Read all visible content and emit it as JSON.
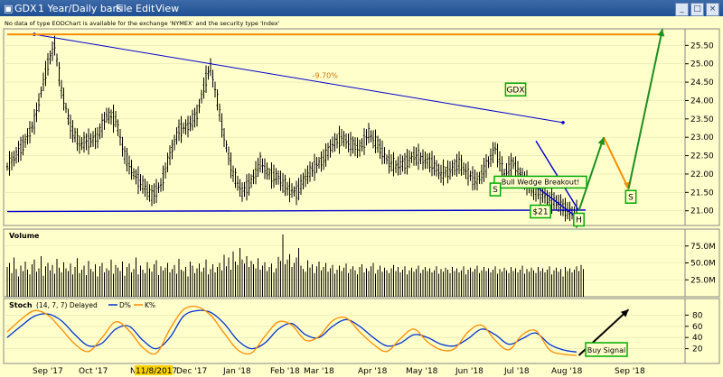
{
  "window": {
    "symbol": "GDX",
    "timeframe": "1 Year/Daily bars",
    "menu": [
      "File",
      "Edit",
      "View"
    ]
  },
  "notice": "No data of type EODChart is available for the exchange 'NYMEX' and the security type 'Index'",
  "colors": {
    "background": "#ffffcc",
    "bars": "#000000",
    "trendline": "#0000cc",
    "projection_orange": "#ff8c00",
    "projection_green": "#1f8f1f",
    "stoch_d": "#0033cc",
    "stoch_k": "#ff8c00",
    "label_border": "#00aa00"
  },
  "chart_data": [
    {
      "type": "bar",
      "panel": "price",
      "title": "",
      "x_labels": [
        "Sep '17",
        "Oct '17",
        "Nov",
        "11/8/2017",
        "Dec '17",
        "Jan '18",
        "Feb '18",
        "Mar '18",
        "Apr '18",
        "May '18",
        "Jun '18",
        "Jul '18",
        "Aug '18",
        "Sep '18"
      ],
      "ylim": [
        20.6,
        25.95
      ],
      "y_ticks": [
        21.0,
        21.5,
        22.0,
        22.5,
        23.0,
        23.5,
        24.0,
        24.5,
        25.0,
        25.5
      ],
      "y_tick_labels": [
        "21.00",
        "21.50",
        "22.00",
        "22.50",
        "23.00",
        "23.50",
        "24.00",
        "24.50",
        "25.00",
        "25.50"
      ],
      "close_path": {
        "t": [
          0,
          4,
          8,
          12,
          16,
          18,
          21,
          24,
          28,
          32,
          36,
          40,
          44,
          48,
          52,
          56,
          60,
          64,
          68,
          72,
          76,
          80,
          84,
          88,
          90,
          93,
          96,
          100,
          104,
          108,
          112,
          116,
          120,
          124,
          128,
          132,
          136,
          140,
          144,
          148,
          152,
          156,
          160,
          164,
          168,
          172,
          176,
          180,
          184,
          188,
          192,
          196,
          200,
          204,
          208,
          212,
          216,
          220,
          224,
          228,
          232,
          236,
          240,
          244,
          248,
          252
        ],
        "close": [
          22.2,
          22.5,
          22.9,
          23.4,
          24.5,
          25.0,
          25.5,
          24.3,
          23.3,
          22.8,
          22.9,
          23.0,
          23.6,
          23.5,
          22.5,
          22.0,
          21.7,
          21.4,
          21.7,
          22.5,
          23.2,
          23.3,
          23.6,
          24.6,
          24.9,
          24.0,
          23.0,
          22.0,
          21.5,
          21.8,
          22.3,
          22.0,
          21.9,
          21.6,
          21.5,
          21.9,
          22.2,
          22.4,
          22.8,
          23.0,
          22.8,
          22.7,
          23.1,
          22.8,
          22.4,
          22.2,
          22.3,
          22.5,
          22.4,
          22.3,
          22.0,
          22.1,
          22.3,
          22.0,
          21.8,
          22.2,
          22.7,
          22.0,
          22.3,
          21.9,
          21.6,
          21.5,
          21.3,
          21.2,
          21.0,
          20.9
        ]
      },
      "trendlines": [
        {
          "name": "",
          "from": {
            "t": 12,
            "y": 25.8
          },
          "to": {
            "t": 246,
            "y": 23.4
          },
          "label": "-9.70%"
        },
        {
          "name": "",
          "from": {
            "t": 0,
            "y": 20.98
          },
          "to": {
            "t": 256,
            "y": 21.02
          }
        },
        {
          "name": "",
          "from": {
            "t": 234,
            "y": 22.9
          },
          "to": {
            "t": 253,
            "y": 21.0
          }
        },
        {
          "name": "",
          "from": {
            "t": 229,
            "y": 21.9
          },
          "to": {
            "t": 253,
            "y": 20.78
          }
        }
      ],
      "projection_orange": [
        {
          "t": 0,
          "y": 25.8
        },
        {
          "t": 290,
          "y": 25.8
        },
        {
          "t": 264,
          "y": 23.0
        },
        {
          "t": 275,
          "y": 21.6
        }
      ],
      "projection_green": [
        {
          "t": 253,
          "y": 21.0
        },
        {
          "t": 264,
          "y": 23.0
        },
        {
          "t": 275,
          "y": 21.6
        },
        {
          "t": 290,
          "y": 25.95
        }
      ],
      "annotations": [
        {
          "text": "GDX",
          "t": 225,
          "y": 24.3,
          "boxed": true
        },
        {
          "text": "Bull Wedge Breakout!",
          "t": 236,
          "y": 21.78,
          "boxed": true
        },
        {
          "text": "S",
          "t": 216,
          "y": 21.58,
          "boxed": true
        },
        {
          "text": "S",
          "t": 276,
          "y": 21.38,
          "boxed": true
        },
        {
          "text": "$21",
          "t": 236,
          "y": 20.98,
          "boxed": true
        },
        {
          "text": "H",
          "t": 253,
          "y": 20.76,
          "boxed": true
        }
      ]
    },
    {
      "type": "bar",
      "panel": "volume",
      "title": "Volume",
      "y_tick_labels": [
        "75.0M",
        "50.0M",
        "25.0M"
      ],
      "y_ticks": [
        75,
        50,
        25
      ],
      "ylim": [
        0,
        100
      ],
      "values": [
        44,
        50,
        35,
        58,
        41,
        30,
        46,
        38,
        52,
        40,
        33,
        48,
        55,
        37,
        42,
        60,
        31,
        45,
        50,
        39,
        47,
        34,
        56,
        43,
        36,
        51,
        42,
        38,
        49,
        33,
        44,
        57,
        35,
        40,
        46,
        32,
        53,
        41,
        37,
        48,
        30,
        45,
        50,
        36,
        42,
        39,
        55,
        34,
        47,
        43,
        38,
        52,
        31,
        44,
        49,
        36,
        41,
        58,
        33,
        46,
        40,
        35,
        51,
        42,
        37,
        48,
        54,
        32,
        45,
        39,
        43,
        50,
        36,
        41,
        47,
        34,
        56,
        40,
        38,
        44,
        30,
        52,
        46,
        35,
        42,
        49,
        37,
        43,
        55,
        33,
        41,
        48,
        36,
        44,
        50,
        39,
        62,
        45,
        58,
        40,
        67,
        52,
        47,
        72,
        55,
        49,
        60,
        44,
        53,
        48,
        42,
        57,
        40,
        46,
        51,
        38,
        44,
        49,
        36,
        42,
        59,
        53,
        92,
        48,
        55,
        63,
        44,
        50,
        58,
        72,
        46,
        41,
        37,
        54,
        43,
        48,
        35,
        45,
        52,
        39,
        44,
        50,
        37,
        42,
        47,
        34,
        40,
        46,
        38,
        43,
        49,
        35,
        41,
        45,
        39,
        33,
        44,
        48,
        36,
        42,
        38,
        45,
        50,
        34,
        40,
        46,
        37,
        43,
        39,
        35,
        42,
        47,
        38,
        44,
        36,
        40,
        45,
        33,
        39,
        43,
        37,
        41,
        46,
        35,
        40,
        44,
        38,
        42,
        36,
        39,
        45,
        34,
        41,
        37,
        43,
        40,
        35,
        44,
        38,
        42,
        36,
        39,
        45,
        33,
        40,
        43,
        37,
        41,
        46,
        35,
        39,
        44,
        38,
        42,
        36,
        40,
        45,
        34,
        41,
        37,
        43,
        39,
        35,
        44,
        38,
        42,
        36,
        40,
        46,
        34,
        41,
        37,
        43,
        39,
        35,
        44,
        38,
        42,
        36,
        40,
        45,
        33,
        39,
        43,
        37,
        41,
        30,
        44,
        38,
        42,
        36,
        40,
        45,
        38,
        47,
        41
      ]
    },
    {
      "type": "line",
      "panel": "stochastic",
      "title": "Stoch",
      "params": "(14, 7, 7) Delayed",
      "ylim": [
        0,
        100
      ],
      "y_ticks": [
        80,
        60,
        40,
        20
      ],
      "y_tick_labels": [
        "80",
        "60",
        "40",
        "20"
      ],
      "series": [
        {
          "name": "D%",
          "color": "#0033cc",
          "t": [
            0,
            6,
            12,
            18,
            24,
            30,
            36,
            42,
            48,
            54,
            60,
            66,
            72,
            78,
            84,
            90,
            96,
            102,
            108,
            114,
            120,
            126,
            132,
            138,
            144,
            150,
            156,
            162,
            168,
            174,
            180,
            186,
            192,
            198,
            204,
            210,
            216,
            222,
            228,
            234,
            240,
            246,
            252
          ],
          "values": [
            40,
            60,
            78,
            82,
            70,
            45,
            25,
            30,
            55,
            60,
            35,
            20,
            40,
            78,
            88,
            85,
            65,
            35,
            20,
            30,
            55,
            65,
            45,
            40,
            60,
            72,
            60,
            40,
            25,
            30,
            45,
            40,
            28,
            25,
            38,
            55,
            45,
            28,
            38,
            48,
            28,
            18,
            14
          ]
        },
        {
          "name": "K%",
          "color": "#ff8c00",
          "t": [
            0,
            6,
            12,
            18,
            24,
            30,
            36,
            42,
            48,
            54,
            60,
            66,
            72,
            78,
            84,
            90,
            96,
            102,
            108,
            114,
            120,
            126,
            132,
            138,
            144,
            150,
            156,
            162,
            168,
            174,
            180,
            186,
            192,
            198,
            204,
            210,
            216,
            222,
            228,
            234,
            240,
            246,
            252
          ],
          "values": [
            50,
            72,
            88,
            80,
            55,
            28,
            15,
            40,
            68,
            52,
            22,
            12,
            55,
            90,
            95,
            80,
            48,
            18,
            12,
            42,
            68,
            62,
            35,
            42,
            70,
            75,
            50,
            28,
            15,
            38,
            55,
            32,
            18,
            20,
            50,
            62,
            35,
            18,
            45,
            52,
            18,
            10,
            8
          ]
        }
      ],
      "signal": {
        "from": {
          "t": 253,
          "y": 8
        },
        "to": {
          "t": 275,
          "y": 90
        },
        "label": "Buy Signal"
      }
    }
  ]
}
